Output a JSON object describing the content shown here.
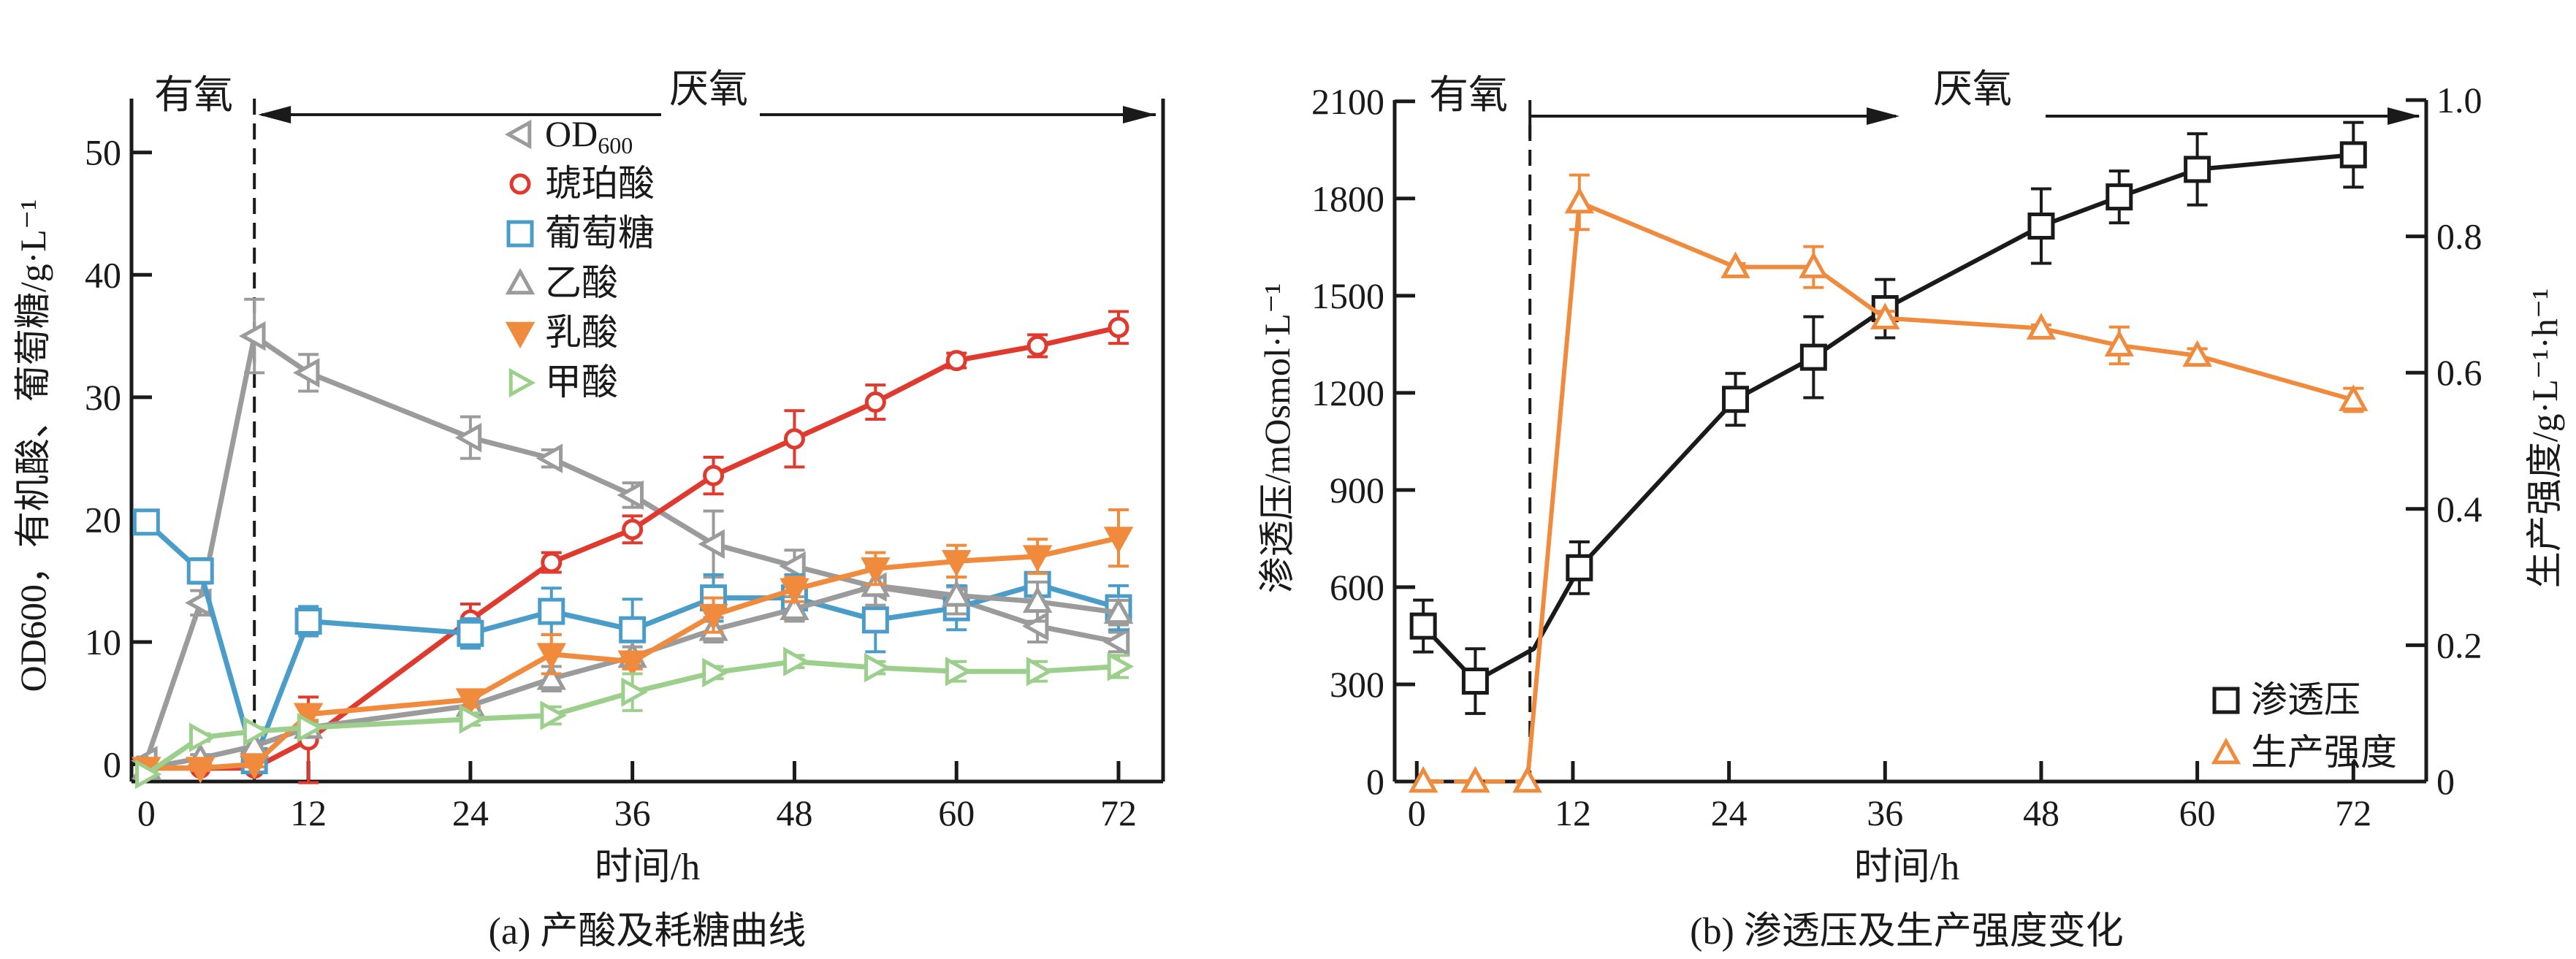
{
  "chart_data": [
    {
      "type": "line",
      "title": "",
      "caption": "(a) 产酸及耗糖曲线",
      "xlabel": "时间/h",
      "ylabel": "OD600，有机酸、葡萄糖/g·L⁻¹",
      "xlim": [
        -1.1,
        75.3
      ],
      "ylim": [
        -1.4,
        54.4
      ],
      "xticks": [
        0,
        12,
        24,
        36,
        48,
        60,
        72
      ],
      "yticks": [
        0,
        10,
        20,
        30,
        40,
        50
      ],
      "phase_boundary_x": 8,
      "annotations": {
        "aerobic": "有氧",
        "anaerobic": "厌氧"
      },
      "legend_position": "top-center",
      "series": [
        {
          "name": "OD600",
          "marker": "triangle-left",
          "color": "#9b9b9b",
          "filled": false,
          "x": [
            0,
            4,
            8,
            12,
            24,
            30,
            36,
            42,
            48,
            54,
            60,
            66,
            72
          ],
          "values": [
            0.3,
            13.2,
            35,
            32,
            26.7,
            25,
            22,
            18,
            16.2,
            14.5,
            13.5,
            11.3,
            10
          ],
          "errors": [
            0.3,
            1,
            3,
            1.5,
            1.7,
            0.7,
            1,
            2.7,
            1.3,
            1.5,
            1,
            1.3,
            0.8
          ]
        },
        {
          "name": "琥珀酸",
          "marker": "circle",
          "color": "#e03a2e",
          "filled": false,
          "x": [
            0,
            4,
            8,
            12,
            24,
            30,
            36,
            42,
            48,
            54,
            60,
            66,
            72
          ],
          "values": [
            -0.3,
            -0.3,
            -0.3,
            2,
            11.8,
            16.5,
            19.2,
            23.6,
            26.6,
            29.6,
            33,
            34.2,
            35.7
          ],
          "errors": [
            0.2,
            0.2,
            0.2,
            3.5,
            1.3,
            0.8,
            1.1,
            1.5,
            2.3,
            1.4,
            0.6,
            0.9,
            1.3
          ]
        },
        {
          "name": "葡萄糖",
          "marker": "square",
          "color": "#4a9cc9",
          "filled": false,
          "x": [
            0,
            4,
            8,
            12,
            24,
            30,
            36,
            42,
            48,
            54,
            60,
            66,
            72
          ],
          "values": [
            19.8,
            15.8,
            0.3,
            11.7,
            10.7,
            12.5,
            11,
            13.6,
            13.6,
            11.8,
            12.8,
            14.7,
            12.8
          ],
          "errors": [
            0.3,
            1,
            0.3,
            1.2,
            1.2,
            1.9,
            2.5,
            1.9,
            1.9,
            2.6,
            1.8,
            0.8,
            1.8
          ]
        },
        {
          "name": "乙酸",
          "marker": "triangle-up",
          "color": "#9b9b9b",
          "filled": false,
          "x": [
            0,
            4,
            8,
            12,
            24,
            30,
            36,
            42,
            48,
            54,
            60,
            66,
            72
          ],
          "values": [
            -0.3,
            0.5,
            1.5,
            3,
            4.8,
            7,
            8.8,
            11,
            12.7,
            14.6,
            13.8,
            13.3,
            12.4
          ],
          "errors": [
            0.2,
            0.3,
            0.3,
            0.4,
            1,
            1,
            0.8,
            1,
            1,
            1.6,
            1.5,
            1.6,
            1
          ]
        },
        {
          "name": "乳酸",
          "marker": "triangle-down",
          "color": "#f08a3c",
          "filled": true,
          "x": [
            0,
            4,
            8,
            12,
            24,
            30,
            36,
            42,
            48,
            54,
            60,
            66,
            72
          ],
          "values": [
            -0.3,
            -0.3,
            0,
            4.1,
            5.3,
            9,
            8.4,
            12.2,
            14.3,
            16,
            16.6,
            17,
            18.5
          ],
          "errors": [
            0.2,
            0.2,
            0.2,
            0.5,
            0.6,
            1.6,
            0.6,
            1.4,
            1,
            1.3,
            1.3,
            1.4,
            2.3
          ]
        },
        {
          "name": "甲酸",
          "marker": "triangle-right",
          "color": "#9dcf8c",
          "filled": false,
          "x": [
            0,
            4,
            8,
            12,
            24,
            30,
            36,
            42,
            48,
            54,
            60,
            66,
            72
          ],
          "values": [
            -0.8,
            2.2,
            2.7,
            3,
            3.7,
            4,
            5.9,
            7.5,
            8.4,
            7.9,
            7.6,
            7.6,
            8
          ],
          "errors": [
            0.2,
            0.3,
            0.3,
            0.3,
            0.5,
            0.7,
            1.5,
            0.5,
            0.5,
            0.5,
            0.8,
            0.8,
            0.9
          ]
        }
      ]
    },
    {
      "type": "line",
      "title": "",
      "caption": "(b) 渗透压及生产强度变化",
      "xlabel": "时间/h",
      "ylabel": "渗透压/mOsmol·L⁻¹",
      "y2label": "生产强度/g·L⁻¹·h⁻¹",
      "xlim": [
        -1.7,
        77.6
      ],
      "ylim": [
        0,
        2104
      ],
      "y2lim": [
        0,
        1.0
      ],
      "xticks": [
        0,
        12,
        24,
        36,
        48,
        60,
        72
      ],
      "yticks": [
        0,
        300,
        600,
        900,
        1200,
        1500,
        1800,
        2100
      ],
      "y2ticks": [
        0,
        0.2,
        0.4,
        0.6,
        0.8,
        1.0
      ],
      "y2ticklabels": [
        "0",
        "0.2",
        "0.4",
        "0.6",
        "0.8",
        "1.0"
      ],
      "phase_boundary_x": 8.7,
      "annotations": {
        "aerobic": "有氧",
        "anaerobic": "厌氧"
      },
      "legend_position": "bottom-right",
      "series": [
        {
          "name": "渗透压",
          "axis": "left",
          "marker": "square",
          "color": "#1a1a1a",
          "filled": false,
          "x": [
            0.5,
            4.5,
            9,
            12.5,
            24.5,
            30.5,
            36,
            48,
            54,
            60,
            72
          ],
          "values": [
            480,
            310,
            410,
            660,
            1180,
            1310,
            1460,
            1715,
            1805,
            1890,
            1935
          ],
          "errors": [
            80,
            100,
            null,
            80,
            80,
            125,
            90,
            115,
            80,
            110,
            100
          ],
          "marker_hidden_at": [
            2
          ]
        },
        {
          "name": "生产强度",
          "axis": "right",
          "marker": "triangle-up",
          "color": "#f08a3c",
          "filled": false,
          "x": [
            0.5,
            4.5,
            8.5,
            12.5,
            24.5,
            30.5,
            36,
            48,
            54,
            60,
            72
          ],
          "values": [
            0,
            0,
            0,
            0.85,
            0.755,
            0.755,
            0.68,
            0.665,
            0.64,
            0.625,
            0.56
          ],
          "errors": [
            null,
            null,
            null,
            0.04,
            0.005,
            0.03,
            0.01,
            0.005,
            0.027,
            0.01,
            0.017
          ],
          "dashed_segments_until_index": 2
        }
      ]
    }
  ]
}
